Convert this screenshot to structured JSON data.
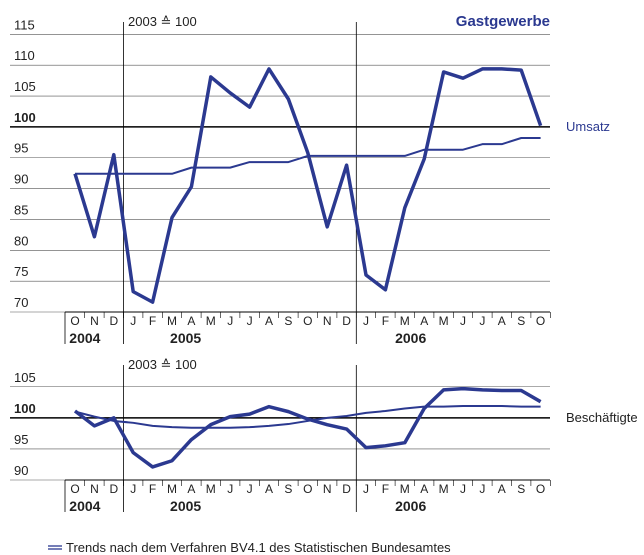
{
  "chart_data": [
    {
      "type": "line",
      "title": "Gastgewerbe",
      "subtitle": "2003 ≙ 100",
      "categories": [
        "O",
        "N",
        "D",
        "J",
        "F",
        "M",
        "A",
        "M",
        "J",
        "J",
        "A",
        "S",
        "O",
        "N",
        "D",
        "J",
        "F",
        "M",
        "A",
        "M",
        "J",
        "J",
        "A",
        "S",
        "O"
      ],
      "year_groups": [
        {
          "label": "2004",
          "months": 3
        },
        {
          "label": "2005",
          "months": 12
        },
        {
          "label": "2006",
          "months": 10
        }
      ],
      "series": [
        {
          "name": "Umsatz",
          "color": "#2b3990",
          "values": [
            92.4,
            82.2,
            95.5,
            73.3,
            71.6,
            85.3,
            90.3,
            108.1,
            105.5,
            103.2,
            109.4,
            104.5,
            95.8,
            83.8,
            93.8,
            76,
            73.6,
            86.9,
            94.8,
            108.9,
            107.9,
            109.4,
            109.4,
            109.2,
            100.2
          ]
        },
        {
          "color": "#2b3990",
          "trend": true,
          "values": [
            92.4,
            92.4,
            92.4,
            92.4,
            92.4,
            92.4,
            93.4,
            93.4,
            93.4,
            94.3,
            94.3,
            94.3,
            95.3,
            95.3,
            95.3,
            95.3,
            95.3,
            95.3,
            96.3,
            96.3,
            96.3,
            97.2,
            97.2,
            98.2,
            98.2
          ]
        }
      ],
      "ylim": [
        70,
        117
      ],
      "yticks": [
        70,
        75,
        80,
        85,
        90,
        95,
        100,
        105,
        110,
        115
      ],
      "reference": 100,
      "grid": true
    },
    {
      "type": "line",
      "subtitle": "2003 ≙ 100",
      "categories": [
        "O",
        "N",
        "D",
        "J",
        "F",
        "M",
        "A",
        "M",
        "J",
        "J",
        "A",
        "S",
        "O",
        "N",
        "D",
        "J",
        "F",
        "M",
        "A",
        "M",
        "J",
        "J",
        "A",
        "S",
        "O"
      ],
      "year_groups": [
        {
          "label": "2004",
          "months": 3
        },
        {
          "label": "2005",
          "months": 12
        },
        {
          "label": "2006",
          "months": 10
        }
      ],
      "series": [
        {
          "name": "Beschäftigte",
          "color": "#2b3990",
          "values": [
            101.1,
            98.7,
            100,
            94.4,
            92.1,
            93.1,
            96.5,
            98.9,
            100.2,
            100.6,
            101.8,
            101,
            99.8,
            98.9,
            98.2,
            95.2,
            95.5,
            96,
            101.5,
            104.5,
            104.7,
            104.5,
            104.4,
            104.4,
            102.6
          ]
        },
        {
          "color": "#2b3990",
          "trend": true,
          "values": [
            101,
            100.2,
            99.5,
            99.2,
            98.7,
            98.5,
            98.4,
            98.4,
            98.4,
            98.5,
            98.7,
            99,
            99.5,
            100,
            100.3,
            100.8,
            101.1,
            101.5,
            101.8,
            101.8,
            101.9,
            101.9,
            101.9,
            101.8,
            101.8
          ]
        }
      ],
      "ylim": [
        90,
        108.5
      ],
      "yticks": [
        90,
        95,
        100,
        105
      ],
      "reference": 100,
      "grid": true
    }
  ],
  "legend": "Trends nach dem Verfahren BV4.1 des Statistischen Bundesamtes"
}
